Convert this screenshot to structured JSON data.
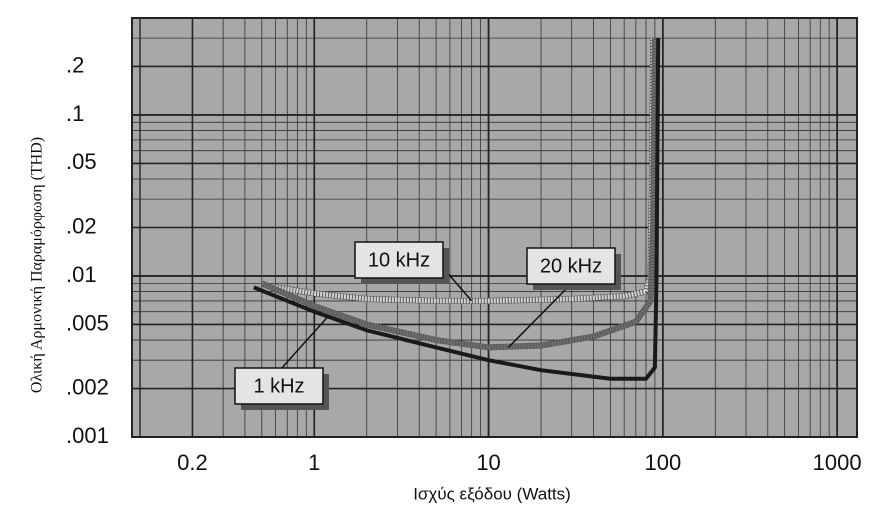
{
  "chart_data": {
    "type": "line",
    "x_label": "Ισχύς εξόδου (Watts)",
    "y_label": "Ολική Αρμονική Παραμόρφωση (THD)",
    "log_x": true,
    "log_y": true,
    "grid": true,
    "xlim": [
      0.09,
      1300
    ],
    "ylim": [
      0.001,
      0.4
    ],
    "xticks": [
      0.2,
      1,
      10,
      100,
      1000
    ],
    "yticks": [
      {
        "value": 0.001,
        "label": ".001"
      },
      {
        "value": 0.002,
        "label": ".002"
      },
      {
        "value": 0.005,
        "label": ".005"
      },
      {
        "value": 0.01,
        "label": ".01"
      },
      {
        "value": 0.02,
        "label": ".02"
      },
      {
        "value": 0.05,
        "label": ".05"
      },
      {
        "value": 0.1,
        "label": ".1"
      },
      {
        "value": 0.2,
        "label": ".2"
      }
    ],
    "series": [
      {
        "name": "10 kHz",
        "color": "#d4d4d4",
        "x": [
          0.6,
          1,
          2,
          5,
          10,
          30,
          60,
          80,
          85,
          87,
          88
        ],
        "values": [
          0.0085,
          0.0078,
          0.0072,
          0.007,
          0.007,
          0.0072,
          0.0075,
          0.008,
          0.01,
          0.05,
          0.3
        ]
      },
      {
        "name": "20 kHz",
        "color": "#6e6e6e",
        "x": [
          0.5,
          1,
          2,
          5,
          10,
          20,
          40,
          70,
          85,
          88,
          90
        ],
        "values": [
          0.009,
          0.0065,
          0.005,
          0.004,
          0.0036,
          0.0037,
          0.0042,
          0.0052,
          0.007,
          0.02,
          0.3
        ]
      },
      {
        "name": "1 kHz",
        "color": "#1a1a1a",
        "x": [
          0.45,
          1,
          2,
          5,
          10,
          20,
          50,
          80,
          90,
          92,
          94
        ],
        "values": [
          0.0085,
          0.006,
          0.0046,
          0.0036,
          0.003,
          0.0026,
          0.0023,
          0.0023,
          0.0027,
          0.01,
          0.3
        ]
      }
    ]
  }
}
